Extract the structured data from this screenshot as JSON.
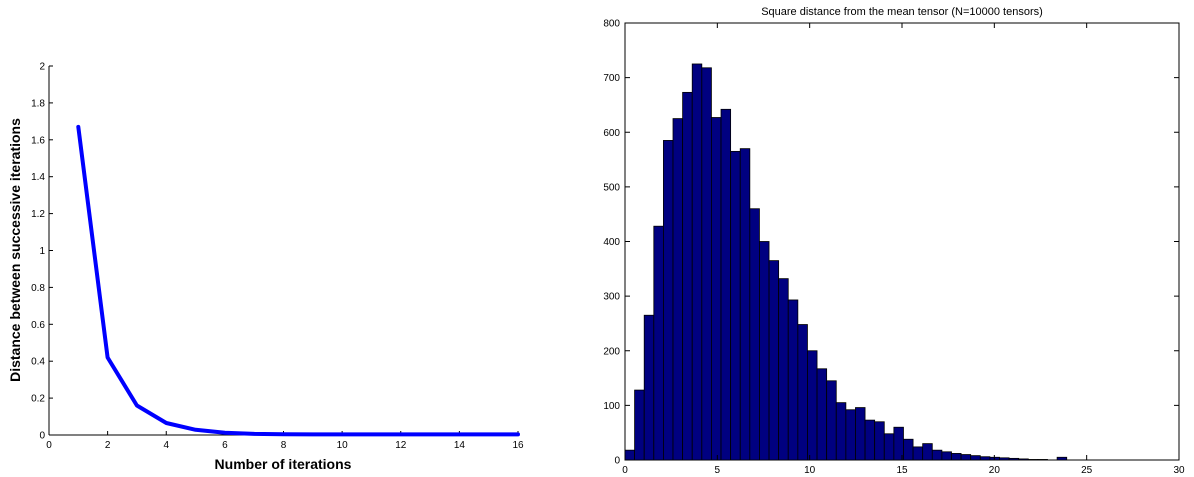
{
  "chart_data": [
    {
      "type": "line",
      "title": "",
      "xlabel": "Number of iterations",
      "ylabel": "Distance between successive iterations",
      "xlim": [
        0,
        16
      ],
      "ylim": [
        0,
        2
      ],
      "xticks": [
        "0",
        "2",
        "4",
        "6",
        "8",
        "10",
        "12",
        "14",
        "16"
      ],
      "yticks": [
        "0",
        "0.2",
        "0.4",
        "0.6",
        "0.8",
        "1",
        "1.2",
        "1.4",
        "1.6",
        "1.8",
        "2"
      ],
      "grid": false,
      "line_color": "#0000ff",
      "series": [
        {
          "x": [
            1,
            2,
            3,
            4,
            5,
            6,
            7,
            8,
            9,
            10,
            11,
            12,
            13,
            14,
            15,
            16
          ],
          "y": [
            1.67,
            0.42,
            0.16,
            0.065,
            0.028,
            0.012,
            0.006,
            0.004,
            0.003,
            0.003,
            0.003,
            0.003,
            0.003,
            0.003,
            0.003,
            0.003
          ]
        }
      ]
    },
    {
      "type": "bar",
      "title": "Square distance from the mean tensor (N=10000 tensors)",
      "xlabel": "",
      "ylabel": "",
      "xlim": [
        0,
        30
      ],
      "ylim": [
        0,
        800
      ],
      "xticks": [
        "0",
        "5",
        "10",
        "15",
        "20",
        "25",
        "30"
      ],
      "yticks": [
        "0",
        "100",
        "200",
        "300",
        "400",
        "500",
        "600",
        "700",
        "800"
      ],
      "grid": false,
      "bar_color": "#000080",
      "bin_start": 0,
      "bin_width": 0.52,
      "values": [
        18,
        128,
        265,
        428,
        585,
        625,
        673,
        725,
        718,
        627,
        642,
        565,
        570,
        460,
        400,
        365,
        332,
        293,
        248,
        200,
        167,
        145,
        105,
        92,
        96,
        73,
        70,
        48,
        60,
        38,
        24,
        30,
        18,
        15,
        12,
        10,
        8,
        6,
        5,
        4,
        3,
        2,
        1,
        1,
        0,
        5
      ]
    }
  ]
}
